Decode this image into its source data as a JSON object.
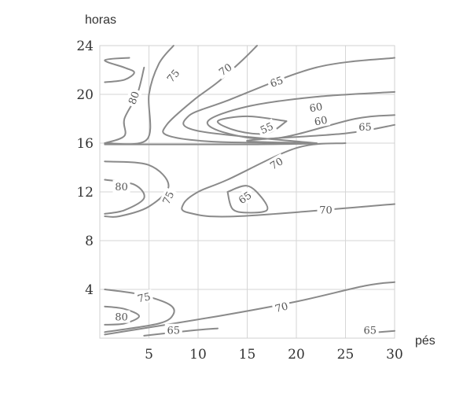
{
  "chart_data": {
    "type": "contour",
    "xlabel": "pés",
    "ylabel": "horas",
    "xlim": [
      0,
      30
    ],
    "ylim": [
      0,
      24
    ],
    "x_ticks": [
      5,
      10,
      15,
      20,
      25,
      30
    ],
    "y_ticks": [
      4,
      8,
      12,
      16,
      20,
      24
    ],
    "grid": true,
    "contours": [
      {
        "level": 80,
        "label": "80",
        "points": [
          [
            3,
            23
          ],
          [
            0.5,
            22.8
          ],
          [
            2.5,
            22.2
          ],
          [
            3.5,
            21.8
          ],
          [
            2.5,
            21.2
          ],
          [
            0.5,
            21
          ]
        ]
      },
      {
        "level": 80,
        "label": "80",
        "points": [
          [
            4.5,
            22.2
          ],
          [
            3.8,
            20
          ],
          [
            2.5,
            18
          ],
          [
            2.5,
            16.6
          ],
          [
            0.5,
            16
          ]
        ]
      },
      {
        "level": 75,
        "label": "75",
        "points": [
          [
            7.5,
            24
          ],
          [
            6,
            22.5
          ],
          [
            5,
            20
          ],
          [
            4.8,
            16.3
          ],
          [
            0.5,
            16
          ]
        ]
      },
      {
        "level": 70,
        "label": "70",
        "points": [
          [
            16,
            24
          ],
          [
            14.5,
            22.8
          ],
          [
            12,
            21
          ],
          [
            9.5,
            19.5
          ],
          [
            6.8,
            17.5
          ],
          [
            7,
            16.6
          ],
          [
            12,
            16.1
          ],
          [
            22,
            16
          ],
          [
            16,
            15.9
          ],
          [
            0.5,
            15.9
          ]
        ]
      },
      {
        "level": 65,
        "label": "65",
        "points": [
          [
            30,
            23
          ],
          [
            22,
            22.2
          ],
          [
            13,
            19.5
          ],
          [
            9,
            18.2
          ],
          [
            10,
            17
          ],
          [
            22,
            16
          ]
        ]
      },
      {
        "level": 60,
        "label": "60",
        "points": [
          [
            30,
            20.2
          ],
          [
            22,
            19.8
          ],
          [
            15,
            19
          ],
          [
            11,
            17.8
          ],
          [
            13,
            16.8
          ],
          [
            18,
            16.4
          ],
          [
            26,
            18
          ],
          [
            30,
            18.3
          ]
        ]
      },
      {
        "level": 65,
        "label": "65",
        "points": [
          [
            30,
            17.5
          ],
          [
            25,
            16.8
          ],
          [
            15,
            16.2
          ],
          [
            22,
            16
          ]
        ]
      },
      {
        "level": 55,
        "label": "55",
        "points": [
          [
            19,
            17.8
          ],
          [
            15,
            18.2
          ],
          [
            12,
            17.8
          ],
          [
            14,
            17
          ],
          [
            17,
            16.8
          ],
          [
            19,
            17.8
          ]
        ]
      },
      {
        "level": 70,
        "label": "70",
        "points": [
          [
            25,
            16
          ],
          [
            20,
            15.6
          ],
          [
            13,
            13
          ],
          [
            10,
            12
          ],
          [
            8.5,
            11
          ],
          [
            9,
            10.3
          ],
          [
            14,
            10
          ],
          [
            30,
            11
          ]
        ]
      },
      {
        "level": 80,
        "label": "80",
        "points": [
          [
            0.5,
            14.5
          ],
          [
            5,
            14.2
          ],
          [
            7,
            12.5
          ],
          [
            5,
            10.8
          ],
          [
            2,
            10
          ],
          [
            0.5,
            10
          ]
        ]
      },
      {
        "level": 75,
        "label": "75",
        "points": [
          [
            0.5,
            13
          ],
          [
            3.5,
            12.6
          ],
          [
            4.5,
            11.5
          ],
          [
            2.5,
            10.5
          ],
          [
            0.5,
            10.2
          ]
        ]
      },
      {
        "level": 65,
        "label": "65",
        "points": [
          [
            13,
            12
          ],
          [
            15,
            12.5
          ],
          [
            16.5,
            11.5
          ],
          [
            17,
            10.5
          ],
          [
            15,
            10.3
          ],
          [
            13.5,
            10.6
          ],
          [
            13,
            12
          ]
        ]
      },
      {
        "level": 75,
        "label": "75",
        "points": [
          [
            0.5,
            4
          ],
          [
            4,
            3.6
          ],
          [
            7,
            2.8
          ],
          [
            7.5,
            2
          ],
          [
            6,
            1.2
          ],
          [
            0.5,
            0.5
          ]
        ]
      },
      {
        "level": 80,
        "label": "80",
        "points": [
          [
            0.5,
            2.6
          ],
          [
            2.5,
            2.4
          ],
          [
            4,
            1.8
          ],
          [
            2.5,
            1.2
          ],
          [
            0.5,
            1.1
          ]
        ]
      },
      {
        "level": 70,
        "label": "70",
        "points": [
          [
            0.5,
            0.3
          ],
          [
            12,
            1.8
          ],
          [
            20,
            3
          ],
          [
            27,
            4.3
          ],
          [
            30,
            4.6
          ]
        ]
      },
      {
        "level": 65,
        "label": "65",
        "points": [
          [
            4.5,
            0.2
          ],
          [
            9,
            0.6
          ],
          [
            12,
            0.8
          ]
        ]
      },
      {
        "level": 65,
        "label": "65",
        "points": [
          [
            27,
            0.4
          ],
          [
            30,
            0.6
          ]
        ]
      }
    ],
    "labels": [
      {
        "text": "80",
        "x": 3.5,
        "y": 19.7,
        "rotate": -70
      },
      {
        "text": "75",
        "x": 7.5,
        "y": 21.5,
        "rotate": -50
      },
      {
        "text": "70",
        "x": 12.8,
        "y": 22,
        "rotate": -35
      },
      {
        "text": "65",
        "x": 18,
        "y": 21,
        "rotate": -20
      },
      {
        "text": "60",
        "x": 22,
        "y": 18.9,
        "rotate": -10
      },
      {
        "text": "60",
        "x": 22.5,
        "y": 17.8,
        "rotate": -10
      },
      {
        "text": "65",
        "x": 27,
        "y": 17.3,
        "rotate": 0
      },
      {
        "text": "55",
        "x": 17,
        "y": 17.2,
        "rotate": -25
      },
      {
        "text": "70",
        "x": 18,
        "y": 14.3,
        "rotate": -30
      },
      {
        "text": "80",
        "x": 2.2,
        "y": 12.4,
        "rotate": 0
      },
      {
        "text": "75",
        "x": 7,
        "y": 11.5,
        "rotate": -65
      },
      {
        "text": "65",
        "x": 14.8,
        "y": 11.5,
        "rotate": -35
      },
      {
        "text": "70",
        "x": 23,
        "y": 10.5,
        "rotate": 0
      },
      {
        "text": "75",
        "x": 4.5,
        "y": 3.3,
        "rotate": -12
      },
      {
        "text": "80",
        "x": 2.2,
        "y": 1.7,
        "rotate": 0
      },
      {
        "text": "70",
        "x": 18.5,
        "y": 2.5,
        "rotate": -15
      },
      {
        "text": "65",
        "x": 7.5,
        "y": 0.6,
        "rotate": 0
      },
      {
        "text": "65",
        "x": 27.5,
        "y": 0.6,
        "rotate": 0
      }
    ]
  }
}
